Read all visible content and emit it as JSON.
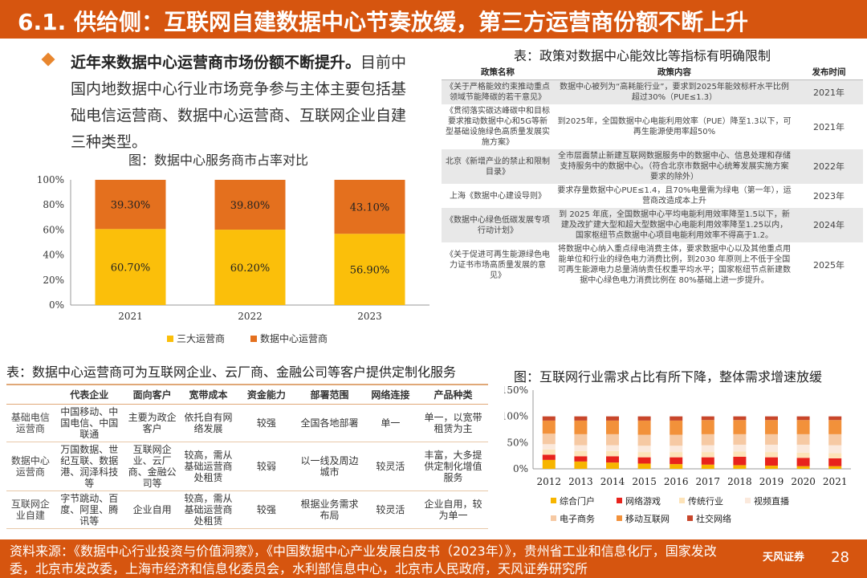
{
  "header": {
    "title": "6.1. 供给侧：互联网自建数据中心节奏放缓，第三方运营商份额不断上升"
  },
  "bullet": {
    "lead": "近年来数据中心运营商市场份额不断提升。",
    "text": "目前中国内地数据中心行业市场竞争参与主体主要包括基础电信运营商、数据中心运营商、互联网企业自建三种类型。"
  },
  "chart1": {
    "title": "图：数据中心服务商市占率对比"
  },
  "policy": {
    "title": "表：政策对数据中心能效比等指标有明确限制",
    "headers": [
      "政策名称",
      "政策内容",
      "发布时间"
    ],
    "rows": [
      {
        "name": "《关于严格能效约束推动重点领域节能降碳的若干意见》",
        "content": "数据中心被列为“高耗能行业”，要求到2025年能效标杆水平比例超过30%（PUE≤1.3）",
        "year": "2021年"
      },
      {
        "name": "《贯彻落实碳达峰碳中和目标要求推动数据中心和5G等新型基础设施绿色高质量发展实施方案》",
        "content": "到2025年，全国数据中心电能利用效率（PUE）降至1.3以下，可再生能源使用率超50%",
        "year": "2021年"
      },
      {
        "name": "北京《新增产业的禁止和限制目录》",
        "content": "全市层面禁止新建互联网数据服务中的数据中心、信息处理和存储支持服务中的数据中心。（符合北京市数据中心统筹发展实施方案要求的除外）",
        "year": "2022年"
      },
      {
        "name": "上海《数据中心建设导则》",
        "content": "要求存量数据中心PUE≤1.4，且70%电量需为绿电（第一年），运营商改造成本上升",
        "year": "2023年"
      },
      {
        "name": "《数据中心绿色低碳发展专项行动计划》",
        "content": "到 2025 年底，全国数据中心平均电能利用效率降至1.5以下，新建及改扩建大型和超大型数据中心电能利用效率降至1.25以内，国家枢纽节点数据中心项目电能利用效率不得高于1.2。",
        "year": "2024年"
      },
      {
        "name": "《关于促进可再生能源绿色电力证书市场高质量发展的意见》",
        "content": "将数据中心纳入重点绿电消费主体，要求数据中心以及其他重点用能单位和行业的绿色电力消费比例，到2030 年原则上不低于全国可再生能源电力总量消纳责任权重平均水平；国家枢纽节点新建数据中心绿色电力消费比例在 80%基础上进一步提升。",
        "year": "2025年"
      }
    ]
  },
  "ops": {
    "title": "表：数据中心运营商可为互联网企业、云厂商、金融公司等客户提供定制化服务",
    "headers": [
      "",
      "代表企业",
      "面向客户",
      "宽带成本",
      "资金能力",
      "部署范围",
      "网络连接",
      "产品种类"
    ],
    "rows": [
      [
        "基础电信运营商",
        "中国移动、中国电信、中国联通",
        "主要为政企客户",
        "依托自有网络发展",
        "较强",
        "全国各地部署",
        "单一",
        "单一，以宽带租赁为主"
      ],
      [
        "数据中心运营商",
        "万国数据、世纪互联、数据港、润泽科技等",
        "互联网企业、云厂商、金融公司等",
        "较高，需从基础运营商处租赁",
        "较弱",
        "以一线及周边城市",
        "较灵活",
        "丰富，大多提供定制化增值服务"
      ],
      [
        "互联网企业自建",
        "字节跳动、百度、阿里、腾讯等",
        "企业自用",
        "较高，需从基础运营商处租赁",
        "较强",
        "根据业务需求布局",
        "较灵活",
        "企业自用，较为单一"
      ]
    ]
  },
  "chart2": {
    "title": "图：互联网行业需求占比有所下降，整体需求增速放缓"
  },
  "chart_data": [
    {
      "type": "bar",
      "stacked": true,
      "categories": [
        "2021",
        "2022",
        "2023"
      ],
      "series": [
        {
          "name": "三大运营商",
          "values": [
            60.7,
            60.2,
            56.9
          ],
          "labels": [
            "60.70%",
            "60.20%",
            "56.90%"
          ],
          "color": "#fbbf0a"
        },
        {
          "name": "数据中心运营商",
          "values": [
            39.3,
            39.8,
            43.1
          ],
          "labels": [
            "39.30%",
            "39.80%",
            "43.10%"
          ],
          "color": "#e4701e"
        }
      ],
      "ylim": [
        0,
        100
      ],
      "yticks": [
        "0%",
        "20%",
        "40%",
        "60%",
        "80%",
        "100%"
      ],
      "legend": "bottom"
    },
    {
      "type": "bar",
      "stacked": true,
      "categories": [
        "2012",
        "2013",
        "2014",
        "2015",
        "2016",
        "2017",
        "2018",
        "2019",
        "2020",
        "2021"
      ],
      "series": [
        {
          "name": "综合门户",
          "values": [
            17,
            14,
            12,
            10,
            9,
            8,
            7,
            6,
            5,
            5
          ],
          "color": "#f7b500"
        },
        {
          "name": "网络游戏",
          "values": [
            10,
            10,
            12,
            12,
            13,
            14,
            16,
            16,
            16,
            15
          ],
          "color": "#e8231c"
        },
        {
          "name": "传统行业",
          "values": [
            10,
            10,
            10,
            10,
            10,
            10,
            10,
            10,
            10,
            10
          ],
          "color": "#fde3b8"
        },
        {
          "name": "视频直播",
          "values": [
            10,
            11,
            11,
            12,
            12,
            13,
            13,
            14,
            15,
            15
          ],
          "color": "#fbe9dc"
        },
        {
          "name": "电子商务",
          "values": [
            20,
            21,
            21,
            21,
            21,
            21,
            20,
            20,
            20,
            21
          ],
          "color": "#f6c9a3"
        },
        {
          "name": "移动互联网",
          "values": [
            25,
            26,
            26,
            27,
            27,
            27,
            27,
            27,
            27,
            27
          ],
          "color": "#f2913a"
        },
        {
          "name": "社交网络",
          "values": [
            8,
            8,
            8,
            8,
            8,
            7,
            7,
            7,
            7,
            7
          ],
          "color": "#c8462b"
        }
      ],
      "ylim": [
        0,
        150
      ],
      "yticks": [
        "0%",
        "50%",
        "100%",
        "150%"
      ],
      "legend": "bottom"
    }
  ],
  "footer": {
    "source": "资料来源：《数据中心行业投资与价值洞察》，《中国数据中心产业发展白皮书（2023年）》，贵州省工业和信息化厅，国家发改委，北京市发改委，上海市经济和信息化委员会，水利部信息中心，北京市人民政府，天风证券研究所",
    "logo": "天风证券",
    "page": "28"
  }
}
